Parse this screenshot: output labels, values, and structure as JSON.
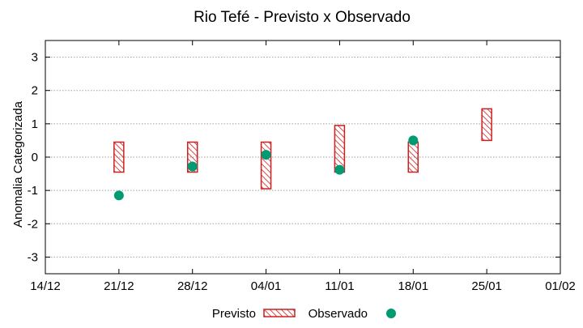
{
  "chart_data": {
    "type": "floating-bar",
    "title": "Rio Tefé - Previsto x Observado",
    "xlabel": "",
    "ylabel": "Anomalia Categorizada",
    "ylim": [
      -3.5,
      3.5
    ],
    "yticks": [
      "3",
      "2",
      "1",
      "0",
      "-1",
      "-2",
      "-3"
    ],
    "ytick_values": [
      3,
      2,
      1,
      0,
      -1,
      -2,
      -3
    ],
    "xticks": [
      "14/12",
      "21/12",
      "28/12",
      "04/01",
      "11/01",
      "18/01",
      "25/01",
      "01/02"
    ],
    "grid": true,
    "legend_position": "bottom-center",
    "series": [
      {
        "name": "Previsto",
        "kind": "range-bar",
        "color": "#cc2020",
        "pattern": "diagonal-hatch",
        "points": [
          {
            "x": "21/12",
            "low": -0.45,
            "high": 0.45
          },
          {
            "x": "28/12",
            "low": -0.45,
            "high": 0.45
          },
          {
            "x": "04/01",
            "low": -0.95,
            "high": 0.45
          },
          {
            "x": "11/01",
            "low": -0.45,
            "high": 0.95
          },
          {
            "x": "18/01",
            "low": -0.45,
            "high": 0.45
          },
          {
            "x": "25/01",
            "low": 0.5,
            "high": 1.45
          }
        ]
      },
      {
        "name": "Observado",
        "kind": "point",
        "color": "#009a73",
        "points": [
          {
            "x": "21/12",
            "y": -1.15
          },
          {
            "x": "28/12",
            "y": -0.28
          },
          {
            "x": "04/01",
            "y": 0.07
          },
          {
            "x": "11/01",
            "y": -0.38
          },
          {
            "x": "18/01",
            "y": 0.5
          }
        ]
      }
    ]
  }
}
